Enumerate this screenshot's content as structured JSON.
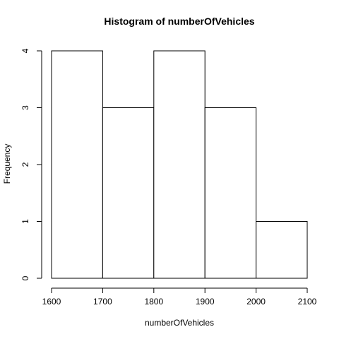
{
  "chart_data": {
    "type": "bar",
    "title": "Histogram of numberOfVehicles",
    "xlabel": "numberOfVehicles",
    "ylabel": "Frequency",
    "bins": [
      {
        "start": 1600,
        "end": 1700,
        "count": 4
      },
      {
        "start": 1700,
        "end": 1800,
        "count": 3
      },
      {
        "start": 1800,
        "end": 1900,
        "count": 4
      },
      {
        "start": 1900,
        "end": 2000,
        "count": 3
      },
      {
        "start": 2000,
        "end": 2100,
        "count": 1
      }
    ],
    "xticks": [
      "1600",
      "1700",
      "1800",
      "1900",
      "2000",
      "2100"
    ],
    "yticks": [
      "0",
      "1",
      "2",
      "3",
      "4"
    ],
    "xlim": [
      1600,
      2100
    ],
    "ylim": [
      0,
      4
    ],
    "grid": false,
    "bar_fill": "#ffffff",
    "bar_stroke": "#000000"
  }
}
